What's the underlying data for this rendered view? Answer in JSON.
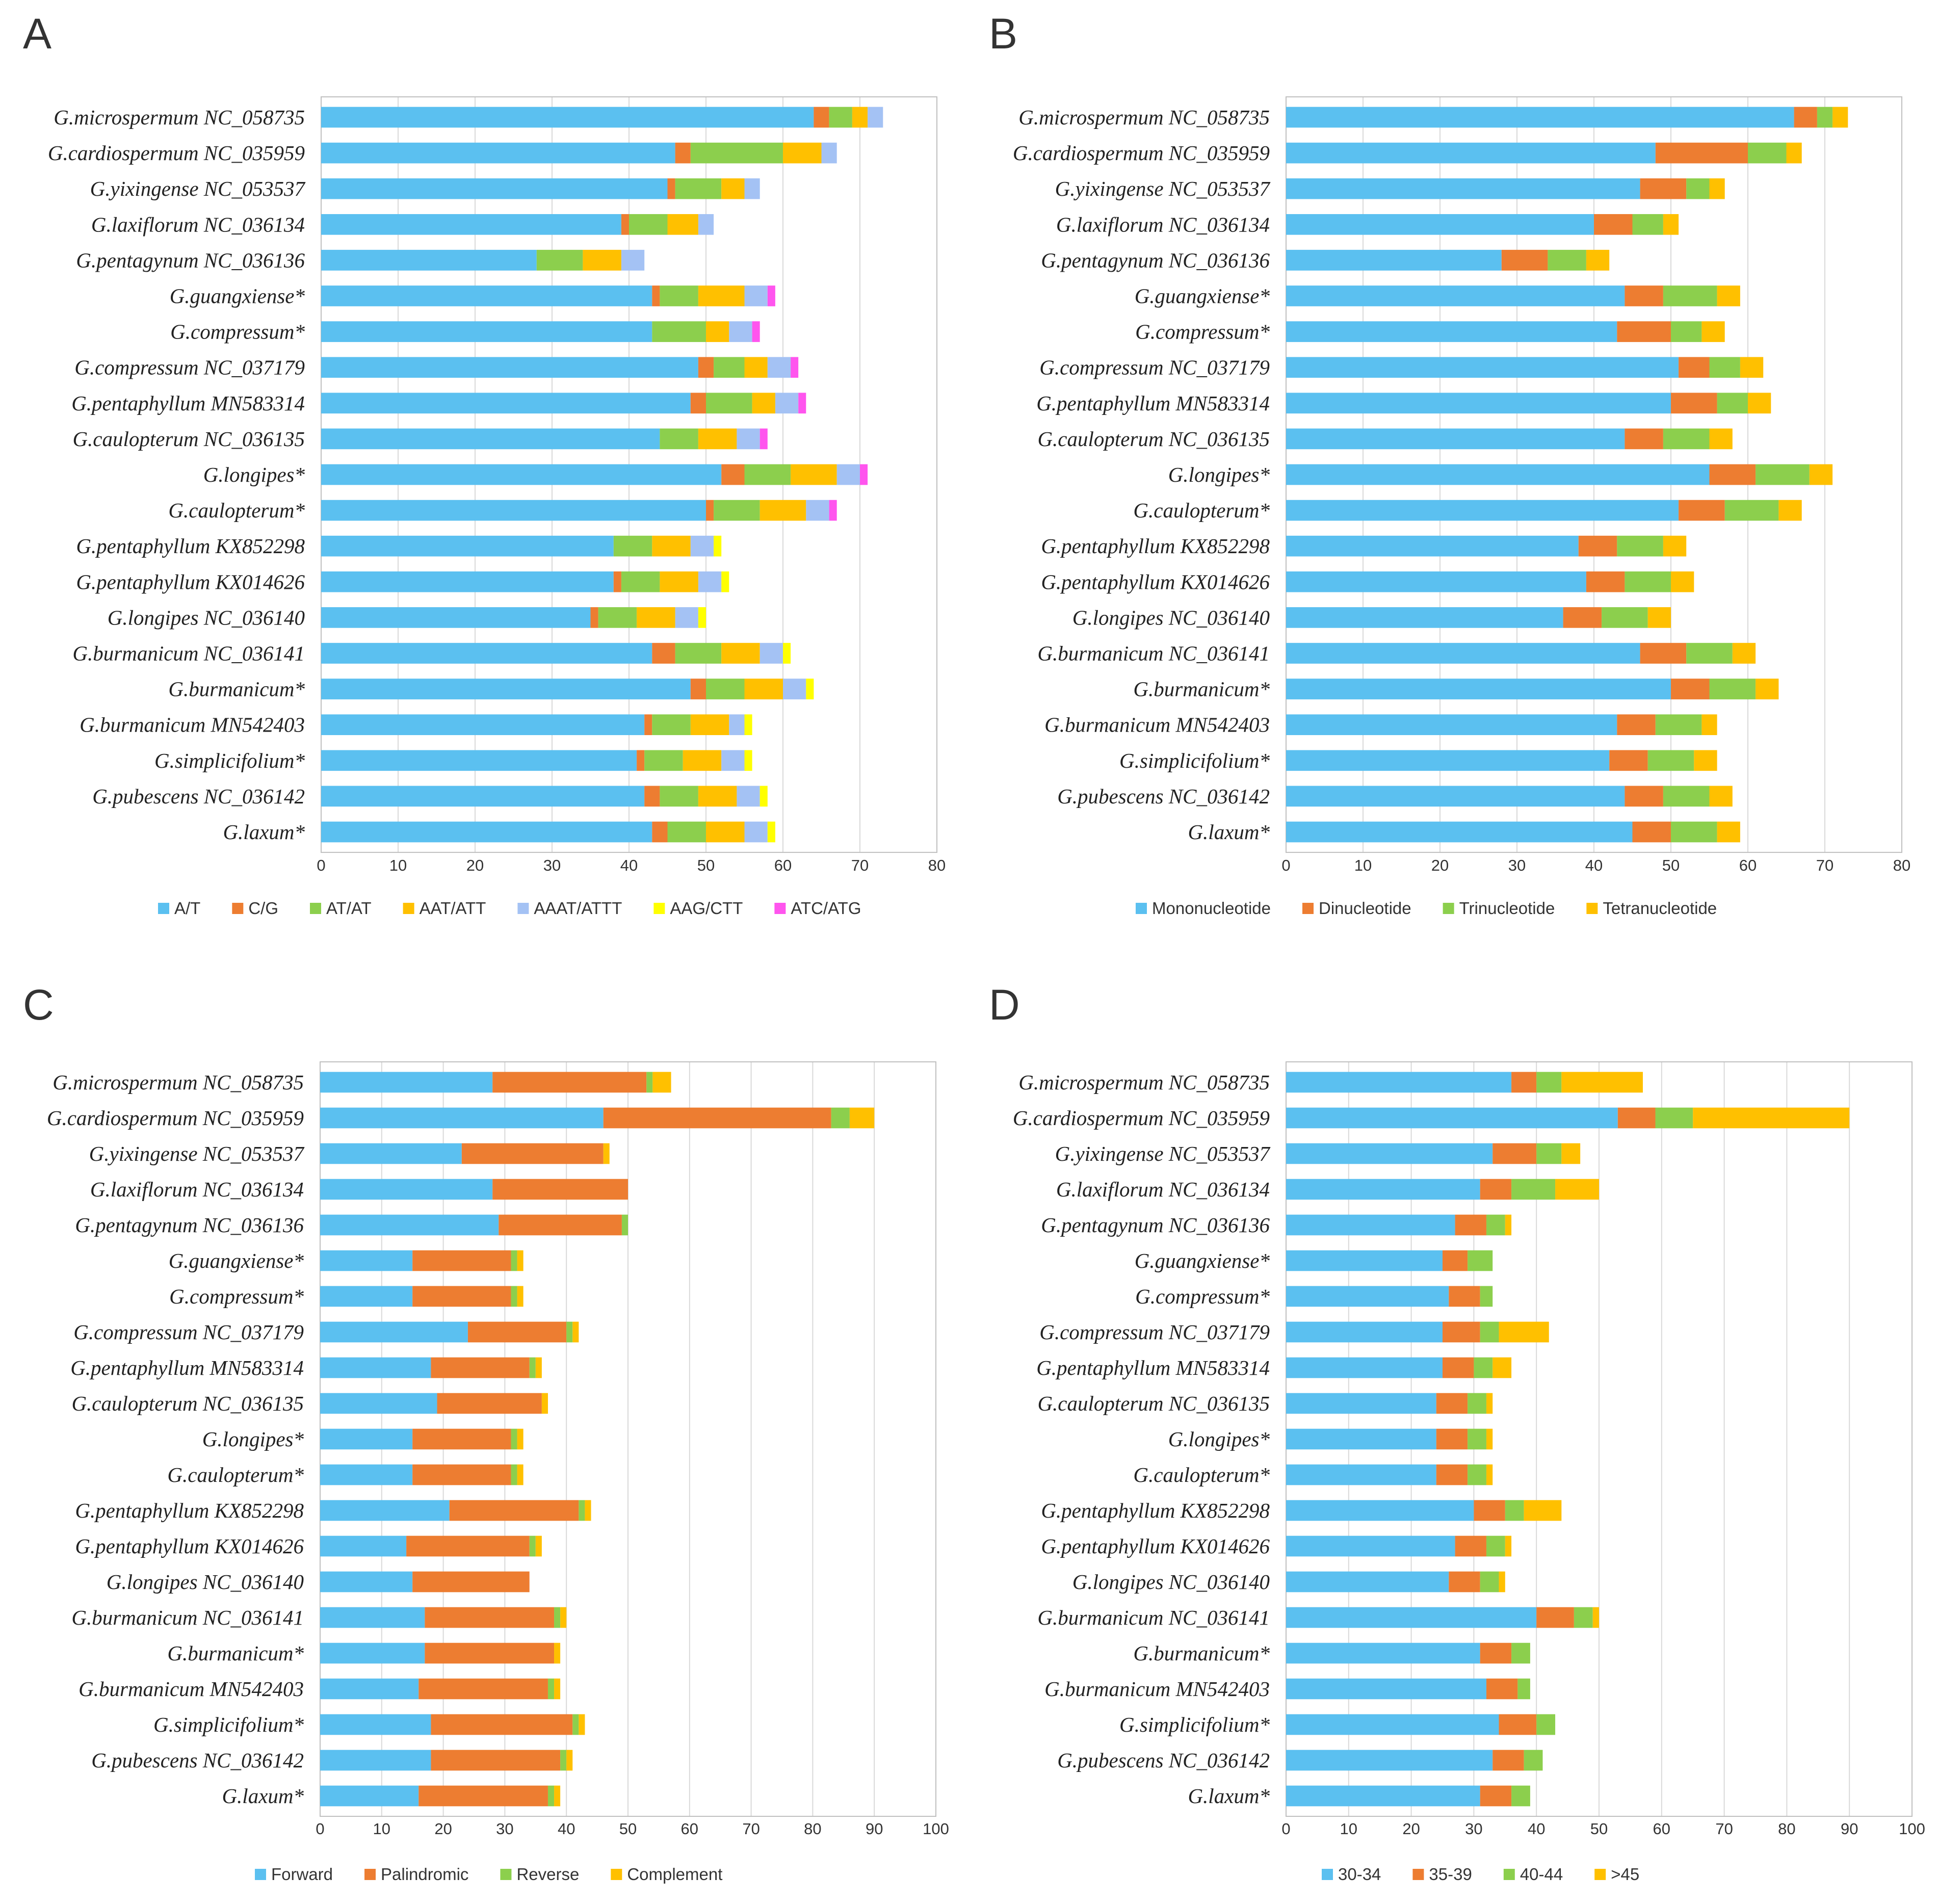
{
  "chart_data": [
    {
      "panel": "A",
      "type": "bar",
      "orientation": "horizontal",
      "stacked": true,
      "categories": [
        "G.microspermum NC_058735",
        "G.cardiospermum NC_035959",
        "G.yixingense NC_053537",
        "G.laxiflorum NC_036134",
        "G.pentagynum NC_036136",
        "G.guangxiense*",
        "G.compressum*",
        "G.compressum NC_037179",
        "G.pentaphyllum MN583314",
        "G.caulopterum NC_036135",
        "G.longipes*",
        "G.caulopterum*",
        "G.pentaphyllum KX852298",
        "G.pentaphyllum KX014626",
        "G.longipes NC_036140",
        "G.burmanicum NC_036141",
        "G.burmanicum*",
        "G.burmanicum MN542403",
        "G.simplicifolium*",
        "G.pubescens NC_036142",
        "G.laxum*"
      ],
      "series": [
        {
          "name": "A/T",
          "color": "#5bc0f0",
          "values": [
            64,
            46,
            45,
            39,
            28,
            43,
            43,
            49,
            48,
            44,
            52,
            50,
            38,
            38,
            35,
            43,
            48,
            42,
            41,
            42,
            43
          ]
        },
        {
          "name": "C/G",
          "color": "#ed7d31",
          "values": [
            2,
            2,
            1,
            1,
            0,
            1,
            0,
            2,
            2,
            0,
            3,
            1,
            0,
            1,
            1,
            3,
            2,
            1,
            1,
            2,
            2
          ]
        },
        {
          "name": "AT/AT",
          "color": "#8ccf4d",
          "values": [
            3,
            12,
            6,
            5,
            6,
            5,
            7,
            4,
            6,
            5,
            6,
            6,
            5,
            5,
            5,
            6,
            5,
            5,
            5,
            5,
            5
          ]
        },
        {
          "name": "AAT/ATT",
          "color": "#ffc000",
          "values": [
            2,
            5,
            3,
            4,
            5,
            6,
            3,
            3,
            3,
            5,
            6,
            6,
            5,
            5,
            5,
            5,
            5,
            5,
            5,
            5,
            5
          ]
        },
        {
          "name": "AAAT/ATTT",
          "color": "#a4c2f4",
          "values": [
            2,
            2,
            2,
            2,
            3,
            3,
            3,
            3,
            3,
            3,
            3,
            3,
            3,
            3,
            3,
            3,
            3,
            2,
            3,
            3,
            3
          ]
        },
        {
          "name": "AAG/CTT",
          "color": "#ffff00",
          "values": [
            0,
            0,
            0,
            0,
            0,
            0,
            0,
            0,
            0,
            0,
            0,
            0,
            1,
            1,
            1,
            1,
            1,
            1,
            1,
            1,
            1
          ]
        },
        {
          "name": "ATC/ATG",
          "color": "#ff55ee",
          "values": [
            0,
            0,
            0,
            0,
            0,
            1,
            1,
            1,
            1,
            1,
            1,
            1,
            0,
            0,
            0,
            0,
            0,
            0,
            0,
            0,
            0
          ]
        }
      ],
      "xlim": [
        0,
        80
      ],
      "xticks": [
        "0",
        "10",
        "20",
        "30",
        "40",
        "50",
        "60",
        "70",
        "80"
      ],
      "legend_position": "bottom"
    },
    {
      "panel": "B",
      "type": "bar",
      "orientation": "horizontal",
      "stacked": true,
      "categories": [
        "G.microspermum NC_058735",
        "G.cardiospermum NC_035959",
        "G.yixingense NC_053537",
        "G.laxiflorum NC_036134",
        "G.pentagynum NC_036136",
        "G.guangxiense*",
        "G.compressum*",
        "G.compressum NC_037179",
        "G.pentaphyllum MN583314",
        "G.caulopterum NC_036135",
        "G.longipes*",
        "G.caulopterum*",
        "G.pentaphyllum KX852298",
        "G.pentaphyllum KX014626",
        "G.longipes NC_036140",
        "G.burmanicum NC_036141",
        "G.burmanicum*",
        "G.burmanicum MN542403",
        "G.simplicifolium*",
        "G.pubescens NC_036142",
        "G.laxum*"
      ],
      "series": [
        {
          "name": "Mononucleotide",
          "color": "#5bc0f0",
          "values": [
            66,
            48,
            46,
            40,
            28,
            44,
            43,
            51,
            50,
            44,
            55,
            51,
            38,
            39,
            36,
            46,
            50,
            43,
            42,
            44,
            45
          ]
        },
        {
          "name": "Dinucleotide",
          "color": "#ed7d31",
          "values": [
            3,
            12,
            6,
            5,
            6,
            5,
            7,
            4,
            6,
            5,
            6,
            6,
            5,
            5,
            5,
            6,
            5,
            5,
            5,
            5,
            5
          ]
        },
        {
          "name": "Trinucleotide",
          "color": "#8ccf4d",
          "values": [
            2,
            5,
            3,
            4,
            5,
            7,
            4,
            4,
            4,
            6,
            7,
            7,
            6,
            6,
            6,
            6,
            6,
            6,
            6,
            6,
            6
          ]
        },
        {
          "name": "Tetranucleotide",
          "color": "#ffc000",
          "values": [
            2,
            2,
            2,
            2,
            3,
            3,
            3,
            3,
            3,
            3,
            3,
            3,
            3,
            3,
            3,
            3,
            3,
            2,
            3,
            3,
            3
          ]
        }
      ],
      "xlim": [
        0,
        80
      ],
      "xticks": [
        "0",
        "10",
        "20",
        "30",
        "40",
        "50",
        "60",
        "70",
        "80"
      ],
      "legend_position": "bottom"
    },
    {
      "panel": "C",
      "type": "bar",
      "orientation": "horizontal",
      "stacked": true,
      "categories": [
        "G.microspermum NC_058735",
        "G.cardiospermum NC_035959",
        "G.yixingense NC_053537",
        "G.laxiflorum NC_036134",
        "G.pentagynum NC_036136",
        "G.guangxiense*",
        "G.compressum*",
        "G.compressum NC_037179",
        "G.pentaphyllum MN583314",
        "G.caulopterum NC_036135",
        "G.longipes*",
        "G.caulopterum*",
        "G.pentaphyllum KX852298",
        "G.pentaphyllum KX014626",
        "G.longipes NC_036140",
        "G.burmanicum NC_036141",
        "G.burmanicum*",
        "G.burmanicum MN542403",
        "G.simplicifolium*",
        "G.pubescens NC_036142",
        "G.laxum*"
      ],
      "series": [
        {
          "name": "Forward",
          "color": "#5bc0f0",
          "values": [
            28,
            46,
            23,
            28,
            29,
            15,
            15,
            24,
            18,
            19,
            15,
            15,
            21,
            14,
            15,
            17,
            17,
            16,
            18,
            18,
            16
          ]
        },
        {
          "name": "Palindromic",
          "color": "#ed7d31",
          "values": [
            25,
            37,
            23,
            22,
            20,
            16,
            16,
            16,
            16,
            17,
            16,
            16,
            21,
            20,
            19,
            21,
            21,
            21,
            23,
            21,
            21
          ]
        },
        {
          "name": "Reverse",
          "color": "#8ccf4d",
          "values": [
            1,
            3,
            0,
            0,
            1,
            1,
            1,
            1,
            1,
            0,
            1,
            1,
            1,
            1,
            0,
            1,
            0,
            1,
            1,
            1,
            1
          ]
        },
        {
          "name": "Complement",
          "color": "#ffc000",
          "values": [
            3,
            4,
            1,
            0,
            0,
            1,
            1,
            1,
            1,
            1,
            1,
            1,
            1,
            1,
            0,
            1,
            1,
            1,
            1,
            1,
            1
          ]
        }
      ],
      "xlim": [
        0,
        100
      ],
      "xticks": [
        "0",
        "10",
        "20",
        "30",
        "40",
        "50",
        "60",
        "70",
        "80",
        "90",
        "100"
      ],
      "legend_position": "bottom"
    },
    {
      "panel": "D",
      "type": "bar",
      "orientation": "horizontal",
      "stacked": true,
      "categories": [
        "G.microspermum NC_058735",
        "G.cardiospermum NC_035959",
        "G.yixingense NC_053537",
        "G.laxiflorum NC_036134",
        "G.pentagynum NC_036136",
        "G.guangxiense*",
        "G.compressum*",
        "G.compressum NC_037179",
        "G.pentaphyllum MN583314",
        "G.caulopterum NC_036135",
        "G.longipes*",
        "G.caulopterum*",
        "G.pentaphyllum KX852298",
        "G.pentaphyllum KX014626",
        "G.longipes NC_036140",
        "G.burmanicum NC_036141",
        "G.burmanicum*",
        "G.burmanicum MN542403",
        "G.simplicifolium*",
        "G.pubescens NC_036142",
        "G.laxum*"
      ],
      "series": [
        {
          "name": "30-34",
          "color": "#5bc0f0",
          "values": [
            36,
            53,
            33,
            31,
            27,
            25,
            26,
            25,
            25,
            24,
            24,
            24,
            30,
            27,
            26,
            40,
            31,
            32,
            34,
            33,
            31
          ]
        },
        {
          "name": "35-39",
          "color": "#ed7d31",
          "values": [
            4,
            6,
            7,
            5,
            5,
            4,
            5,
            6,
            5,
            5,
            5,
            5,
            5,
            5,
            5,
            6,
            5,
            5,
            6,
            5,
            5
          ]
        },
        {
          "name": "40-44",
          "color": "#8ccf4d",
          "values": [
            4,
            6,
            4,
            7,
            3,
            4,
            2,
            3,
            3,
            3,
            3,
            3,
            3,
            3,
            3,
            3,
            3,
            2,
            3,
            3,
            3
          ]
        },
        {
          "name": ">45",
          "color": "#ffc000",
          "values": [
            13,
            25,
            3,
            7,
            1,
            0,
            0,
            8,
            3,
            1,
            1,
            1,
            6,
            1,
            1,
            1,
            0,
            0,
            0,
            0,
            0
          ]
        }
      ],
      "xlim": [
        0,
        100
      ],
      "xticks": [
        "0",
        "10",
        "20",
        "30",
        "40",
        "50",
        "60",
        "70",
        "80",
        "90",
        "100"
      ],
      "legend_position": "bottom"
    }
  ]
}
